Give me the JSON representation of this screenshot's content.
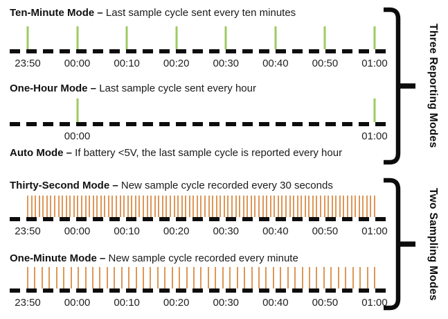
{
  "palette": {
    "background": "#ffffff",
    "axis_line": "#0d0d0d",
    "text": "#1a1a1a",
    "reporting_tick_color": "#9ccb62",
    "sampling_tick_color": "#dd9757"
  },
  "reporting": {
    "bracket_label": "Three Reporting Modes",
    "modes": [
      {
        "name": "Ten-Minute Mode –",
        "description": "Last sample cycle sent every ten minutes"
      },
      {
        "name": "One-Hour Mode –",
        "description": "Last sample cycle sent every hour"
      },
      {
        "name": "Auto Mode –",
        "description": "If battery <5V, the last sample cycle is reported every hour"
      }
    ]
  },
  "sampling": {
    "bracket_label": "Two Sampling Modes",
    "modes": [
      {
        "name": "Thirty-Second Mode –",
        "description": "New sample cycle recorded every 30 seconds"
      },
      {
        "name": "One-Minute Mode –",
        "description": "New sample cycle recorded every minute"
      }
    ]
  },
  "chart_data": [
    {
      "type": "timeline",
      "mode": "ten-minute",
      "tick_interval": "10 minutes",
      "tick_color": "#9ccb62",
      "dense": false,
      "tick_slots": [
        0,
        1,
        2,
        3,
        4,
        5,
        6,
        7
      ],
      "tick_count": 8,
      "axis_labels": [
        "23:50",
        "00:00",
        "00:10",
        "00:20",
        "00:30",
        "00:40",
        "00:50",
        "01:00"
      ],
      "label_slots": [
        0,
        1,
        2,
        3,
        4,
        5,
        6,
        7
      ]
    },
    {
      "type": "timeline",
      "mode": "one-hour",
      "tick_interval": "1 hour",
      "tick_color": "#9ccb62",
      "dense": false,
      "tick_slots": [
        1,
        7
      ],
      "tick_count": 2,
      "axis_labels": [
        "00:00",
        "01:00"
      ],
      "label_slots": [
        1,
        7
      ]
    },
    {
      "type": "timeline",
      "mode": "thirty-second",
      "tick_interval": "30 seconds",
      "tick_color": "#dd9757",
      "dense": true,
      "tick_count": 91,
      "axis_labels": [
        "23:50",
        "00:00",
        "00:10",
        "00:20",
        "00:30",
        "00:40",
        "00:50",
        "01:00"
      ],
      "label_slots": [
        0,
        1,
        2,
        3,
        4,
        5,
        6,
        7
      ]
    },
    {
      "type": "timeline",
      "mode": "one-minute",
      "tick_interval": "1 minute",
      "tick_color": "#dd9757",
      "dense": true,
      "tick_count": 49,
      "axis_labels": [
        "23:50",
        "00:00",
        "00:10",
        "00:20",
        "00:30",
        "00:40",
        "00:50",
        "01:00"
      ],
      "label_slots": [
        0,
        1,
        2,
        3,
        4,
        5,
        6,
        7
      ]
    }
  ]
}
